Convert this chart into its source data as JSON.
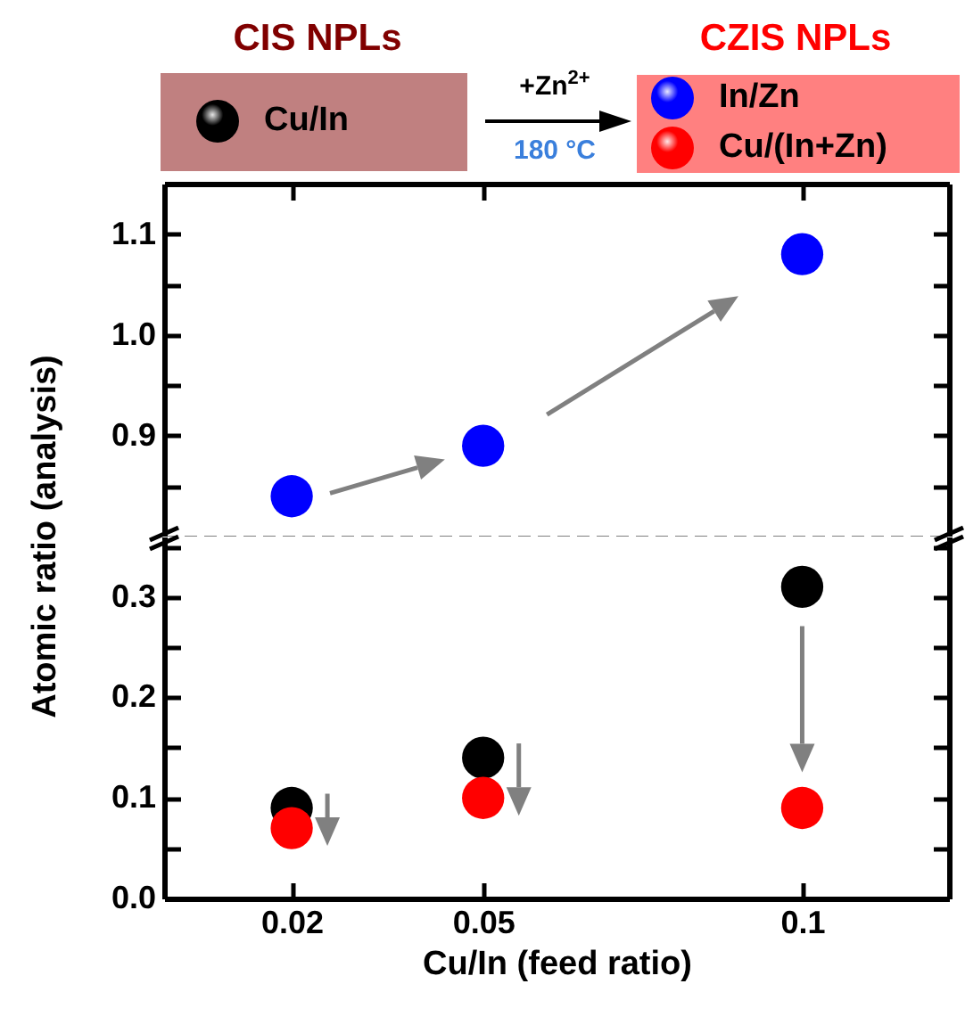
{
  "chart_data": [
    {
      "type": "scatter",
      "x": [
        0.02,
        0.05,
        0.1
      ],
      "xlim": [
        0,
        0.123
      ],
      "xticks": [
        0.02,
        0.05,
        0.1
      ],
      "ylim": [
        0.8,
        1.15
      ],
      "yticks": [
        {
          "value": 0.85,
          "label": null
        },
        0.9,
        {
          "value": 0.95,
          "label": null
        },
        {
          "value": 1.0,
          "label": "1.0"
        },
        {
          "value": 1.05,
          "label": null
        },
        1.1
      ],
      "tick_labels": "y",
      "marker": "circle",
      "legend": "top",
      "annotations": [
        "CIS NPLs",
        "CZIS NPLs",
        "+Zn$^{2+}$",
        "180 °C"
      ],
      "series": [
        {
          "name": "In/Zn",
          "color": "#0000ff",
          "values": [
            0.84,
            0.89,
            1.08
          ]
        }
      ]
    },
    {
      "type": "scatter",
      "x": [
        0.02,
        0.05,
        0.1
      ],
      "xlim": [
        0,
        0.123
      ],
      "xticks": [
        0.02,
        0.05,
        0.1
      ],
      "ylim": [
        0,
        0.36
      ],
      "yticks": [
        {
          "value": 0,
          "label": "0.0"
        },
        {
          "value": 0.05,
          "label": null
        },
        0.1,
        {
          "value": 0.15,
          "label": null
        },
        0.2,
        {
          "value": 0.25,
          "label": null
        },
        0.3,
        {
          "value": 0.35,
          "label": null
        }
      ],
      "xlabel": "Cu/In (feed ratio)",
      "ylabel": "Atomic ratio (analysis)",
      "marker": "circle",
      "legend": "top",
      "series": [
        {
          "name": "Cu/In",
          "color": "#000000",
          "values": [
            0.09,
            0.14,
            0.31
          ]
        },
        {
          "name": "Cu/(In+Zn)",
          "color": "#ff0000",
          "values": [
            0.07,
            0.1,
            0.09
          ]
        }
      ]
    }
  ]
}
